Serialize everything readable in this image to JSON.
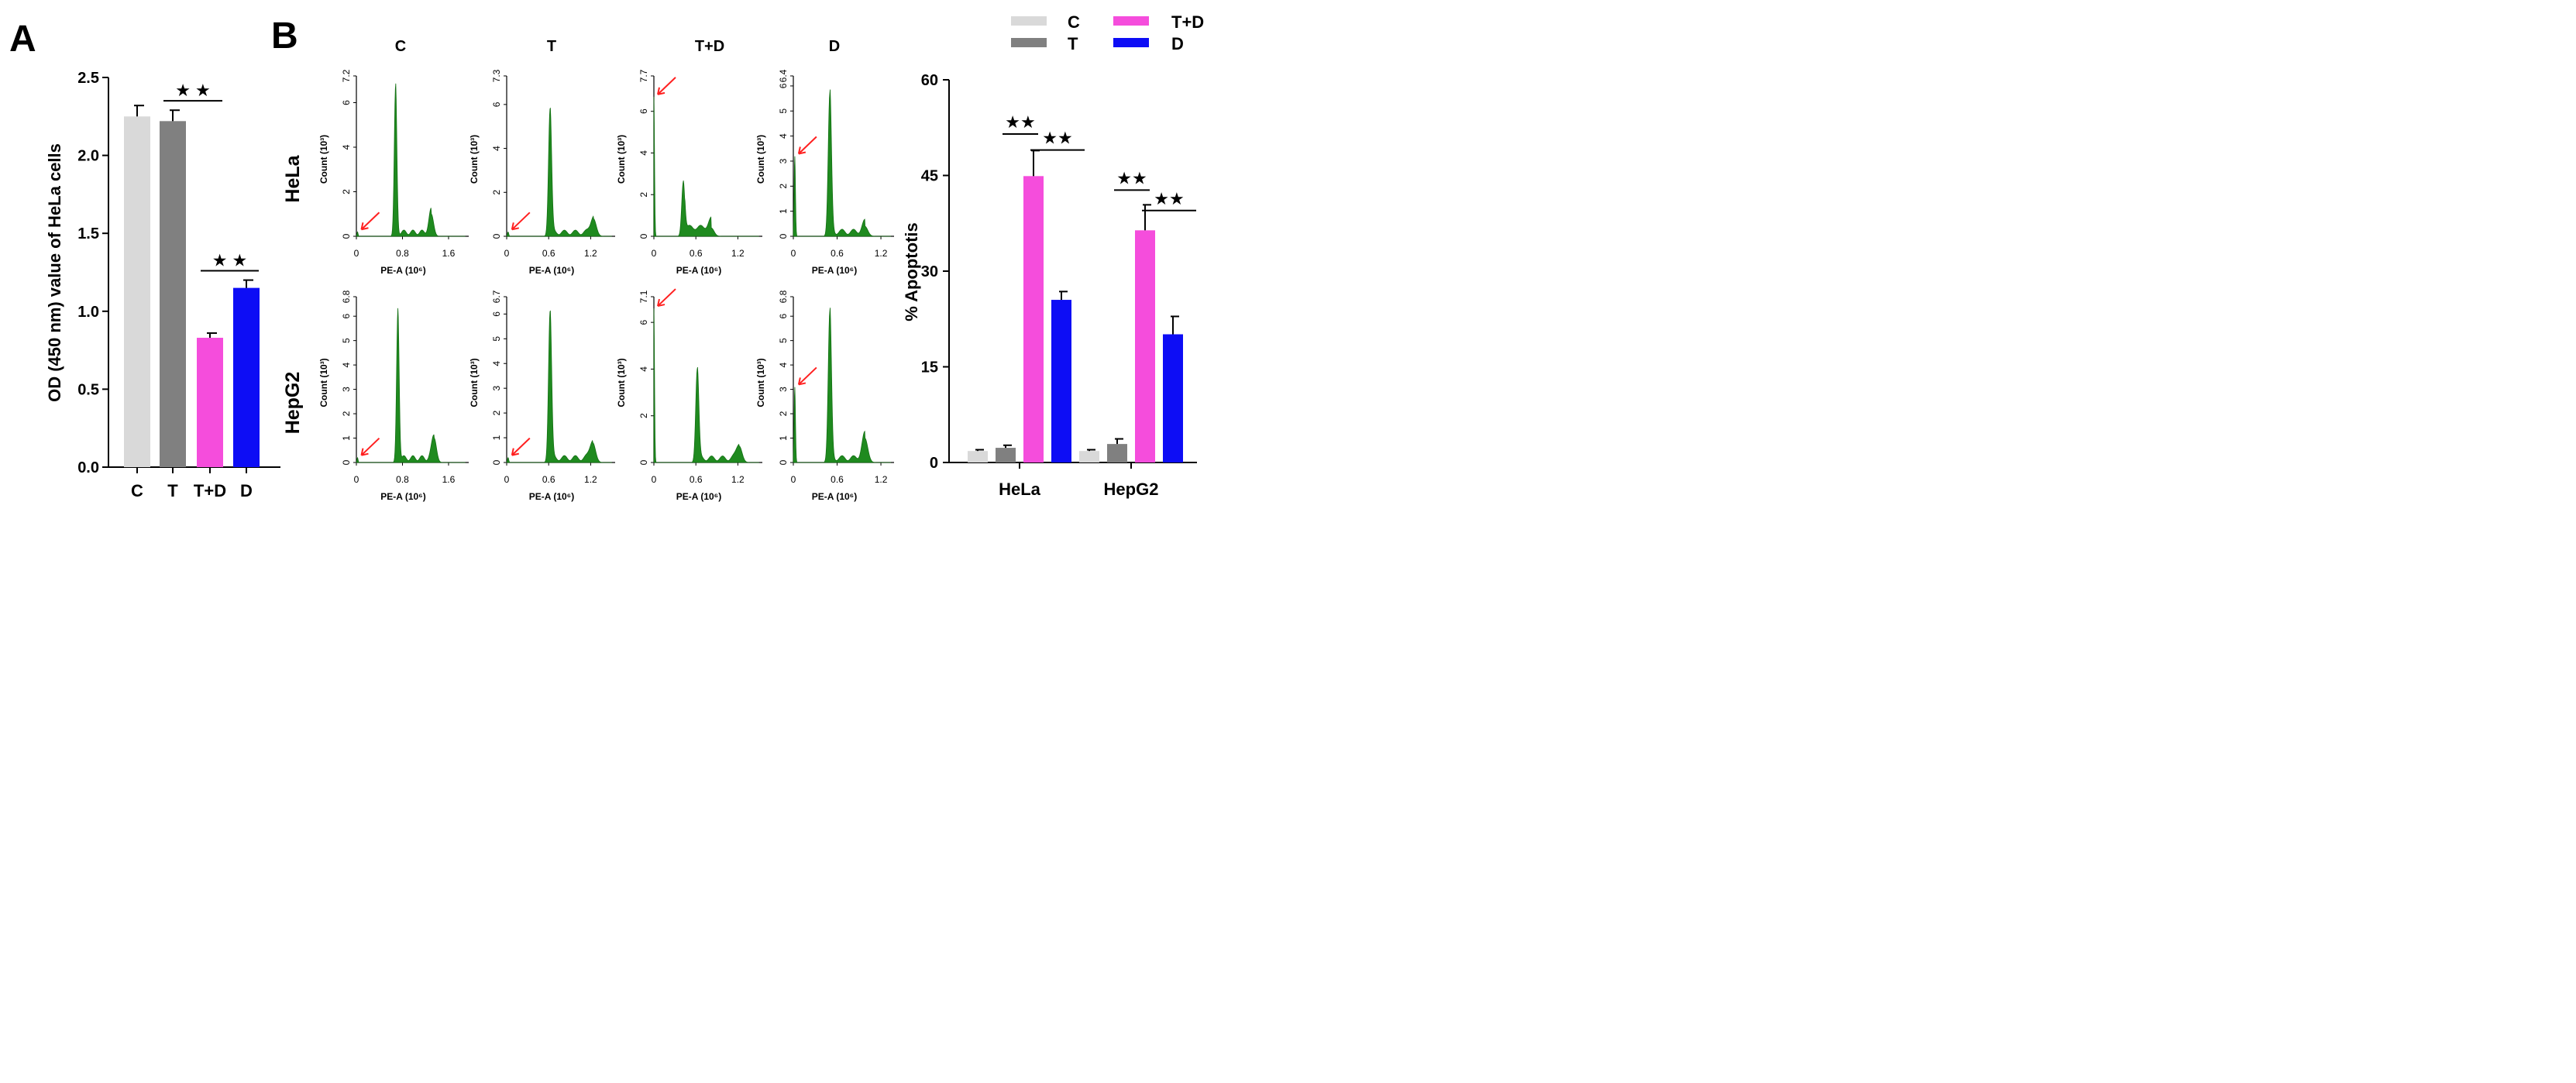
{
  "panel_a_letter": "A",
  "panel_b_letter": "B",
  "star_symbol": "★ ★",
  "star_symbol_tight": "★★",
  "legend": [
    {
      "label": "C",
      "color": "#d9d9d9"
    },
    {
      "label": "T",
      "color": "#808080"
    },
    {
      "label": "T+D",
      "color": "#f54ddc"
    },
    {
      "label": "D",
      "color": "#0d0df5"
    }
  ],
  "chart_data": [
    {
      "id": "panelA",
      "type": "bar",
      "ylabel": "OD (450 nm) value of HeLa cells",
      "categories": [
        "C",
        "T",
        "T+D",
        "D"
      ],
      "values": [
        2.25,
        2.22,
        0.83,
        1.15
      ],
      "errors": [
        0.07,
        0.07,
        0.03,
        0.05
      ],
      "colors": [
        "#d9d9d9",
        "#808080",
        "#f54ddc",
        "#0d0df5"
      ],
      "ylim": [
        0,
        2.5
      ],
      "yticks": [
        "0.0",
        "0.5",
        "1.0",
        "1.5",
        "2.0",
        "2.5"
      ],
      "significance": [
        {
          "from": "T",
          "to": "T+D",
          "y": 2.35,
          "label": "★ ★"
        },
        {
          "from": "T+D",
          "to": "D",
          "y": 1.26,
          "label": "★ ★"
        }
      ]
    },
    {
      "id": "panelB_hist",
      "type": "histogram-grid",
      "column_titles": [
        "C",
        "T",
        "T+D",
        "D"
      ],
      "row_labels": [
        "HeLa",
        "HepG2"
      ],
      "xlabel": "PE-A (10⁶)",
      "ylabel": "Count (10³)",
      "panels": [
        {
          "row": "HeLa",
          "col": "C",
          "ymax": "7.2",
          "yticks": [
            "0",
            "2",
            "4",
            "6"
          ],
          "xticks": [
            "0",
            "0.8",
            "1.6"
          ],
          "xmax": 1.95,
          "sub_g1": 0.02,
          "sub_h": 0.2,
          "g1": 0.68,
          "g1_h": 6.7,
          "g2": 1.3,
          "g2_h": 1.0
        },
        {
          "row": "HeLa",
          "col": "T",
          "ymax": "7.3",
          "yticks": [
            "0",
            "2",
            "4",
            "6"
          ],
          "xticks": [
            "0",
            "0.6",
            "1.2"
          ],
          "xmax": 1.55,
          "sub_g1": 0.02,
          "sub_h": 0.2,
          "g1": 0.62,
          "g1_h": 5.8,
          "g2": 1.24,
          "g2_h": 0.8
        },
        {
          "row": "HeLa",
          "col": "T+D",
          "ymax": "7.7",
          "yticks": [
            "0",
            "2",
            "4",
            "6"
          ],
          "xticks": [
            "0",
            "0.6",
            "1.2"
          ],
          "xmax": 1.55,
          "sub_g1": 0.0,
          "sub_h": 6.7,
          "g1": 0.42,
          "g1_h": 2.6,
          "g2": 0.82,
          "g2_h": 0.4
        },
        {
          "row": "HeLa",
          "col": "D",
          "ymax": "6.4",
          "yticks": [
            "0",
            "1",
            "2",
            "3",
            "4",
            "5",
            "6"
          ],
          "xticks": [
            "0",
            "0.6",
            "1.2"
          ],
          "xmax": 1.38,
          "sub_g1": 0.02,
          "sub_h": 3.2,
          "g1": 0.5,
          "g1_h": 5.7,
          "g2": 0.98,
          "g2_h": 0.4
        },
        {
          "row": "HepG2",
          "col": "C",
          "ymax": "6.8",
          "yticks": [
            "0",
            "1",
            "2",
            "3",
            "4",
            "5",
            "6"
          ],
          "xticks": [
            "0",
            "0.8",
            "1.6"
          ],
          "xmax": 1.95,
          "sub_g1": 0.02,
          "sub_h": 0.2,
          "g1": 0.72,
          "g1_h": 6.2,
          "g2": 1.35,
          "g2_h": 1.0
        },
        {
          "row": "HepG2",
          "col": "T",
          "ymax": "6.7",
          "yticks": [
            "0",
            "1",
            "2",
            "3",
            "4",
            "5",
            "6"
          ],
          "xticks": [
            "0",
            "0.6",
            "1.2"
          ],
          "xmax": 1.55,
          "sub_g1": 0.02,
          "sub_h": 0.2,
          "g1": 0.62,
          "g1_h": 6.1,
          "g2": 1.23,
          "g2_h": 0.8
        },
        {
          "row": "HepG2",
          "col": "T+D",
          "ymax": "7.1",
          "yticks": [
            "0",
            "2",
            "4",
            "6"
          ],
          "xticks": [
            "0",
            "0.6",
            "1.2"
          ],
          "xmax": 1.55,
          "sub_g1": 0.0,
          "sub_h": 6.6,
          "g1": 0.62,
          "g1_h": 4.0,
          "g2": 1.22,
          "g2_h": 0.7
        },
        {
          "row": "HepG2",
          "col": "D",
          "ymax": "6.8",
          "yticks": [
            "0",
            "1",
            "2",
            "3",
            "4",
            "5",
            "6"
          ],
          "xticks": [
            "0",
            "0.6",
            "1.2"
          ],
          "xmax": 1.38,
          "sub_g1": 0.02,
          "sub_h": 3.1,
          "g1": 0.5,
          "g1_h": 6.2,
          "g2": 0.98,
          "g2_h": 1.0
        }
      ]
    },
    {
      "id": "panelB_bar",
      "type": "bar",
      "ylabel": "% Apoptotis",
      "categories": [
        "HeLa",
        "HepG2"
      ],
      "series": [
        {
          "name": "C",
          "values": [
            1.8,
            1.8
          ],
          "errors": [
            0.2,
            0.2
          ],
          "color": "#d9d9d9"
        },
        {
          "name": "T",
          "values": [
            2.3,
            2.9
          ],
          "errors": [
            0.4,
            0.8
          ],
          "color": "#808080"
        },
        {
          "name": "T+D",
          "values": [
            44.9,
            36.4
          ],
          "errors": [
            4.0,
            4.0
          ],
          "color": "#f54ddc"
        },
        {
          "name": "D",
          "values": [
            25.5,
            20.1
          ],
          "errors": [
            1.3,
            2.8
          ],
          "color": "#0d0df5"
        }
      ],
      "ylim": [
        0,
        60
      ],
      "yticks": [
        "0",
        "15",
        "30",
        "45",
        "60"
      ],
      "significance": [
        {
          "group": 0,
          "from": 1,
          "to": 2,
          "y": 51.5,
          "label": "★★"
        },
        {
          "group": 0,
          "from": 2,
          "to": 3,
          "y": 49.0,
          "label": "★★"
        },
        {
          "group": 1,
          "from": 1,
          "to": 2,
          "y": 42.7,
          "label": "★★"
        },
        {
          "group": 1,
          "from": 2,
          "to": 3,
          "y": 39.5,
          "label": "★★"
        }
      ]
    }
  ]
}
